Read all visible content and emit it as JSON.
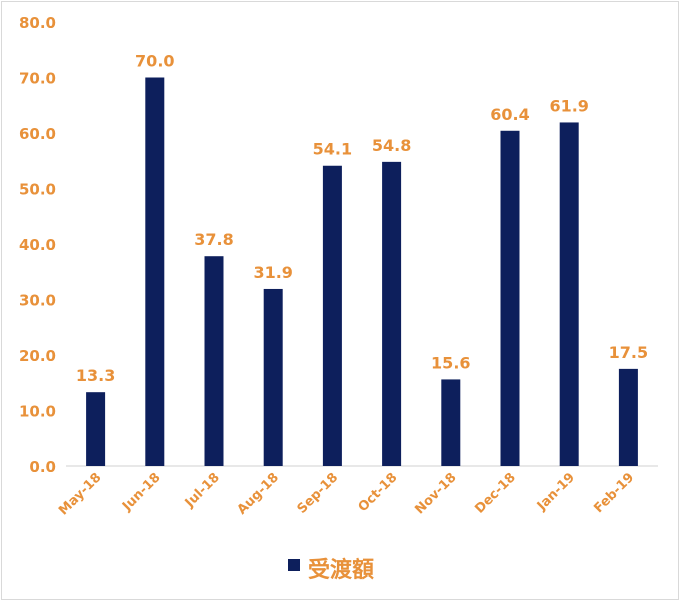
{
  "chart_data": {
    "type": "bar",
    "categories": [
      "May-18",
      "Jun-18",
      "Jul-18",
      "Aug-18",
      "Sep-18",
      "Oct-18",
      "Nov-18",
      "Dec-18",
      "Jan-19",
      "Feb-19"
    ],
    "series": [
      {
        "name": "受渡額",
        "values": [
          13.3,
          70.0,
          37.8,
          31.9,
          54.1,
          54.8,
          15.6,
          60.4,
          61.9,
          17.5
        ]
      }
    ],
    "ylim": [
      0,
      80
    ],
    "yticks": [
      "0.0",
      "10.0",
      "20.0",
      "30.0",
      "40.0",
      "50.0",
      "60.0",
      "70.0",
      "80.0"
    ],
    "data_labels": [
      "13.3",
      "70.0",
      "37.8",
      "31.9",
      "54.1",
      "54.8",
      "15.6",
      "60.4",
      "61.9",
      "17.5"
    ],
    "grid": false,
    "legend_position": "bottom",
    "colors": {
      "bar": "#0d1f5c",
      "text": "#e8913a"
    }
  }
}
